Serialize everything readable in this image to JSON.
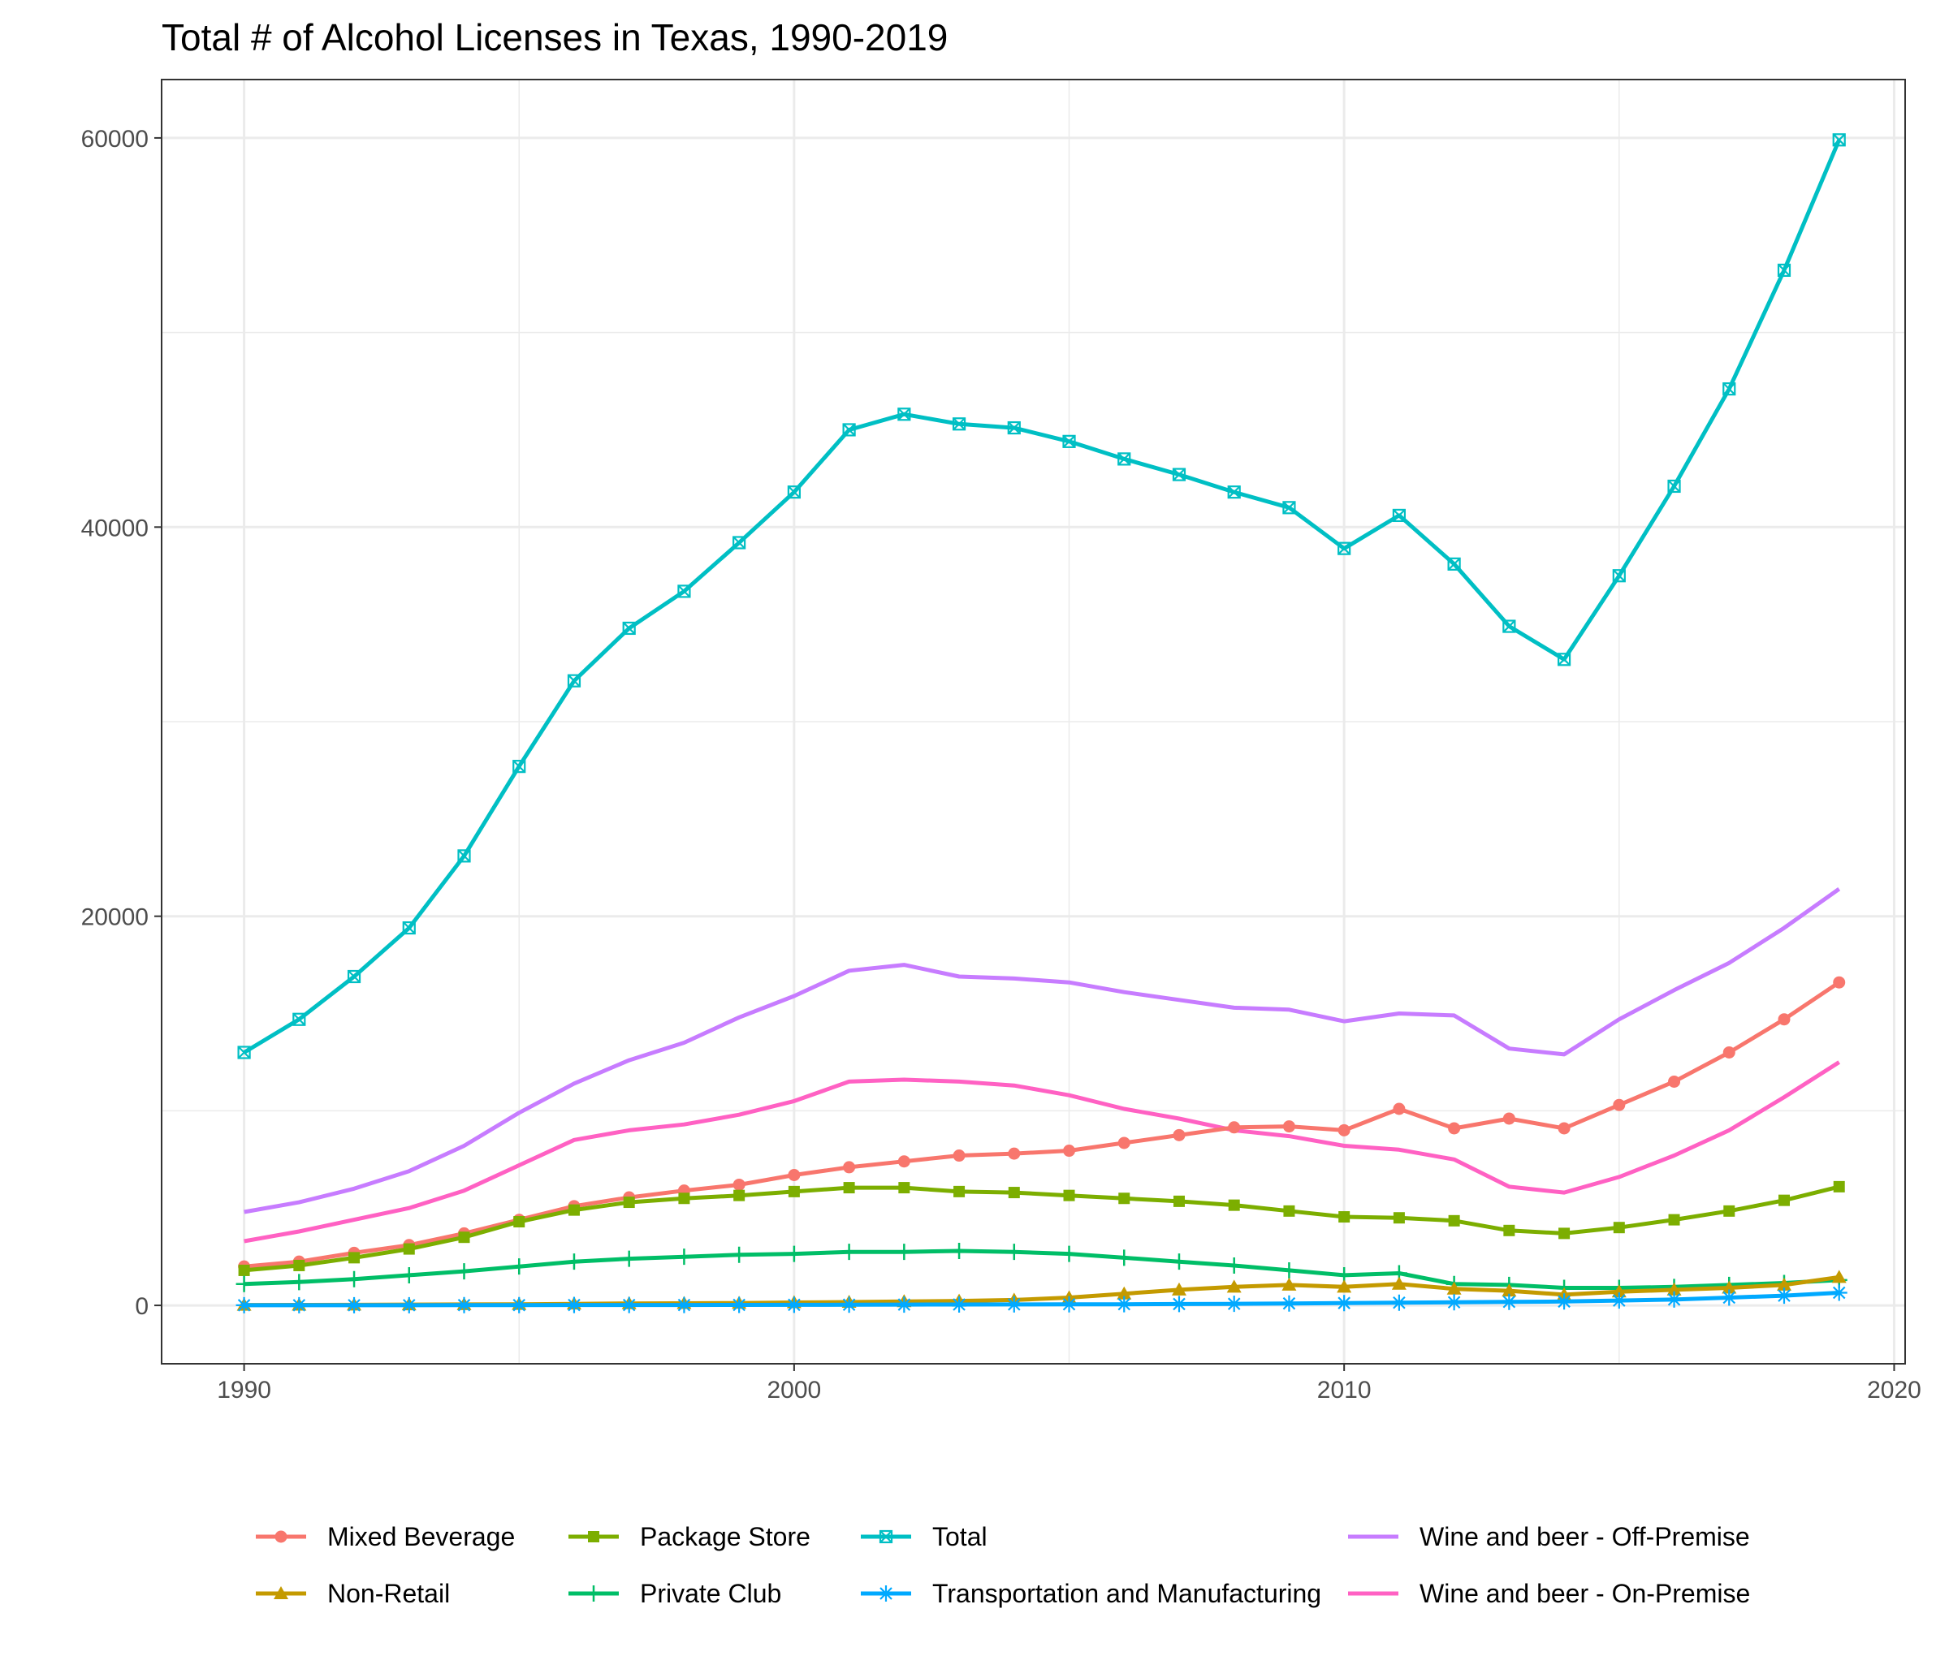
{
  "chart_data": {
    "type": "line",
    "title": "Total # of Alcohol Licenses in Texas, 1990-2019",
    "xlabel": "",
    "ylabel": "",
    "xlim": [
      1988.5,
      2020.2
    ],
    "ylim": [
      -3000,
      63000
    ],
    "x_ticks": [
      1990,
      2000,
      2010,
      2020
    ],
    "y_ticks": [
      0,
      20000,
      40000,
      60000
    ],
    "grid": true,
    "legend_position": "bottom",
    "x": [
      1990,
      1991,
      1992,
      1993,
      1994,
      1995,
      1996,
      1997,
      1998,
      1999,
      2000,
      2001,
      2002,
      2003,
      2004,
      2005,
      2006,
      2007,
      2008,
      2009,
      2010,
      2011,
      2012,
      2013,
      2014,
      2015,
      2016,
      2017,
      2018,
      2019
    ],
    "series": [
      {
        "name": "Mixed Beverage",
        "color": "#F8766D",
        "marker": "circle",
        "values": [
          2000,
          2250,
          2700,
          3100,
          3700,
          4400,
          5100,
          5550,
          5900,
          6200,
          6700,
          7100,
          7400,
          7700,
          7800,
          7950,
          8350,
          8750,
          9150,
          9200,
          9000,
          10100,
          9100,
          9600,
          9100,
          10300,
          11500,
          13000,
          14700,
          16600
        ]
      },
      {
        "name": "Non-Retail",
        "color": "#C49A00",
        "marker": "triangle",
        "values": [
          20,
          25,
          30,
          40,
          50,
          60,
          80,
          100,
          110,
          120,
          150,
          170,
          200,
          230,
          280,
          400,
          600,
          800,
          950,
          1050,
          950,
          1100,
          850,
          750,
          550,
          700,
          800,
          900,
          1050,
          1450
        ]
      },
      {
        "name": "Package Store",
        "color": "#7CAE00",
        "marker": "square",
        "values": [
          1800,
          2050,
          2450,
          2900,
          3500,
          4300,
          4900,
          5300,
          5500,
          5650,
          5850,
          6050,
          6050,
          5850,
          5800,
          5650,
          5500,
          5350,
          5150,
          4850,
          4550,
          4500,
          4350,
          3850,
          3700,
          4000,
          4400,
          4850,
          5400,
          6100
        ]
      },
      {
        "name": "Private Club",
        "color": "#00BE67",
        "marker": "plus",
        "values": [
          1100,
          1200,
          1350,
          1550,
          1750,
          2000,
          2250,
          2400,
          2500,
          2600,
          2650,
          2750,
          2750,
          2800,
          2750,
          2650,
          2450,
          2250,
          2050,
          1800,
          1550,
          1650,
          1100,
          1050,
          900,
          900,
          950,
          1050,
          1150,
          1300
        ]
      },
      {
        "name": "Total",
        "color": "#00BFC4",
        "marker": "square-x",
        "values": [
          13000,
          14700,
          16900,
          19400,
          23100,
          27700,
          32100,
          34800,
          36700,
          39200,
          41800,
          45000,
          45800,
          45300,
          45100,
          44400,
          43500,
          42700,
          41800,
          41000,
          38900,
          40600,
          38100,
          34900,
          33200,
          37500,
          42100,
          47100,
          53200,
          59900
        ]
      },
      {
        "name": "Transportation and Manufacturing",
        "color": "#00A9FF",
        "marker": "asterisk",
        "values": [
          10,
          10,
          10,
          10,
          15,
          15,
          20,
          20,
          20,
          25,
          30,
          35,
          40,
          45,
          50,
          55,
          60,
          70,
          80,
          100,
          120,
          140,
          160,
          180,
          200,
          250,
          300,
          400,
          500,
          650
        ]
      },
      {
        "name": "Wine and beer - Off-Premise",
        "color": "#C77CFF",
        "marker": "none",
        "values": [
          4800,
          5300,
          6000,
          6900,
          8200,
          9900,
          11400,
          12600,
          13500,
          14800,
          15900,
          17200,
          17500,
          16900,
          16800,
          16600,
          16100,
          15700,
          15300,
          15200,
          14600,
          15000,
          14900,
          13200,
          12900,
          14700,
          16200,
          17600,
          19400,
          21400
        ]
      },
      {
        "name": "Wine and beer - On-Premise",
        "color": "#FF61C3",
        "marker": "none",
        "values": [
          3300,
          3800,
          4400,
          5000,
          5900,
          7200,
          8500,
          9000,
          9300,
          9800,
          10500,
          11500,
          11600,
          11500,
          11300,
          10800,
          10100,
          9600,
          9000,
          8700,
          8200,
          8000,
          7500,
          6100,
          5800,
          6600,
          7700,
          9000,
          10700,
          12500
        ]
      }
    ],
    "legend_layout": [
      [
        "Mixed Beverage",
        "Non-Retail"
      ],
      [
        "Package Store",
        "Private Club"
      ],
      [
        "Total",
        "Transportation and Manufacturing"
      ],
      [
        "Wine and beer - Off-Premise",
        "Wine and beer - On-Premise"
      ]
    ]
  }
}
